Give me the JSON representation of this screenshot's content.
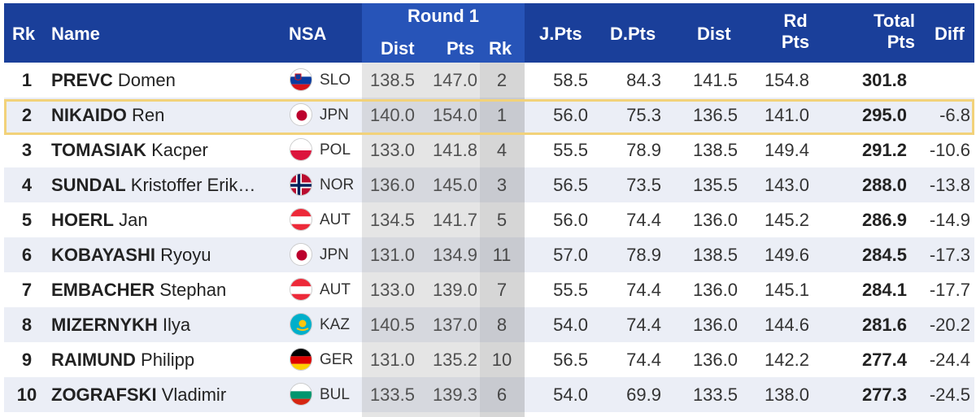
{
  "header": {
    "rk": "Rk",
    "name": "Name",
    "nsa": "NSA",
    "round1": "Round 1",
    "r1_dist": "Dist",
    "r1_pts": "Pts",
    "r1_rk": "Rk",
    "jpts": "J.Pts",
    "dpts": "D.Pts",
    "dist": "Dist",
    "rd_pts_line1": "Rd",
    "rd_pts_line2": "Pts",
    "total_line1": "Total",
    "total_line2": "Pts",
    "diff": "Diff"
  },
  "rows": [
    {
      "rk": "1",
      "last": "PREVC",
      "first": "Domen",
      "nsa": "SLO",
      "flag": "slovenia-flag-icon",
      "r1_dist": "138.5",
      "r1_pts": "147.0",
      "r1_rk": "2",
      "jpts": "58.5",
      "dpts": "84.3",
      "dist": "141.5",
      "rd_pts": "154.8",
      "total": "301.8",
      "diff": ""
    },
    {
      "rk": "2",
      "last": "NIKAIDO",
      "first": "Ren",
      "nsa": "JPN",
      "flag": "japan-flag-icon",
      "r1_dist": "140.0",
      "r1_pts": "154.0",
      "r1_rk": "1",
      "jpts": "56.0",
      "dpts": "75.3",
      "dist": "136.5",
      "rd_pts": "141.0",
      "total": "295.0",
      "diff": "-6.8"
    },
    {
      "rk": "3",
      "last": "TOMASIAK",
      "first": "Kacper",
      "nsa": "POL",
      "flag": "poland-flag-icon",
      "r1_dist": "133.0",
      "r1_pts": "141.8",
      "r1_rk": "4",
      "jpts": "55.5",
      "dpts": "78.9",
      "dist": "138.5",
      "rd_pts": "149.4",
      "total": "291.2",
      "diff": "-10.6"
    },
    {
      "rk": "4",
      "last": "SUNDAL",
      "first": "Kristoffer Erik…",
      "nsa": "NOR",
      "flag": "norway-flag-icon",
      "r1_dist": "136.0",
      "r1_pts": "145.0",
      "r1_rk": "3",
      "jpts": "56.5",
      "dpts": "73.5",
      "dist": "135.5",
      "rd_pts": "143.0",
      "total": "288.0",
      "diff": "-13.8"
    },
    {
      "rk": "5",
      "last": "HOERL",
      "first": "Jan",
      "nsa": "AUT",
      "flag": "austria-flag-icon",
      "r1_dist": "134.5",
      "r1_pts": "141.7",
      "r1_rk": "5",
      "jpts": "56.0",
      "dpts": "74.4",
      "dist": "136.0",
      "rd_pts": "145.2",
      "total": "286.9",
      "diff": "-14.9"
    },
    {
      "rk": "6",
      "last": "KOBAYASHI",
      "first": "Ryoyu",
      "nsa": "JPN",
      "flag": "japan-flag-icon",
      "r1_dist": "131.0",
      "r1_pts": "134.9",
      "r1_rk": "11",
      "jpts": "57.0",
      "dpts": "78.9",
      "dist": "138.5",
      "rd_pts": "149.6",
      "total": "284.5",
      "diff": "-17.3"
    },
    {
      "rk": "7",
      "last": "EMBACHER",
      "first": "Stephan",
      "nsa": "AUT",
      "flag": "austria-flag-icon",
      "r1_dist": "133.0",
      "r1_pts": "139.0",
      "r1_rk": "7",
      "jpts": "55.5",
      "dpts": "74.4",
      "dist": "136.0",
      "rd_pts": "145.1",
      "total": "284.1",
      "diff": "-17.7"
    },
    {
      "rk": "8",
      "last": "MIZERNYKH",
      "first": "Ilya",
      "nsa": "KAZ",
      "flag": "kazakhstan-flag-icon",
      "r1_dist": "140.5",
      "r1_pts": "137.0",
      "r1_rk": "8",
      "jpts": "54.0",
      "dpts": "74.4",
      "dist": "136.0",
      "rd_pts": "144.6",
      "total": "281.6",
      "diff": "-20.2"
    },
    {
      "rk": "9",
      "last": "RAIMUND",
      "first": "Philipp",
      "nsa": "GER",
      "flag": "germany-flag-icon",
      "r1_dist": "131.0",
      "r1_pts": "135.2",
      "r1_rk": "10",
      "jpts": "56.5",
      "dpts": "74.4",
      "dist": "136.0",
      "rd_pts": "142.2",
      "total": "277.4",
      "diff": "-24.4"
    },
    {
      "rk": "10",
      "last": "ZOGRAFSKI",
      "first": "Vladimir",
      "nsa": "BUL",
      "flag": "bulgaria-flag-icon",
      "r1_dist": "133.5",
      "r1_pts": "139.3",
      "r1_rk": "6",
      "jpts": "54.0",
      "dpts": "69.9",
      "dist": "133.5",
      "rd_pts": "138.0",
      "total": "277.3",
      "diff": "-24.5"
    }
  ],
  "colors": {
    "header": "#1a3f9a",
    "header_band": "#2754b8",
    "row_alt": "#ebeef6",
    "highlight": "#f2d27a"
  }
}
